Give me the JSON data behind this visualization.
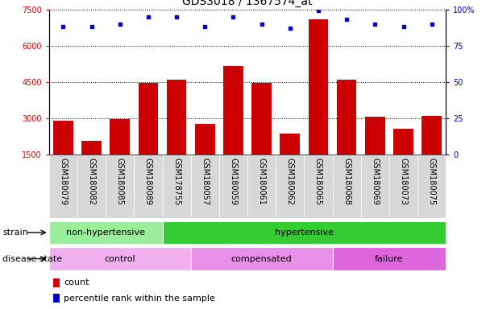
{
  "title": "GDS3018 / 1367574_at",
  "samples": [
    "GSM180079",
    "GSM180082",
    "GSM180085",
    "GSM180089",
    "GSM178755",
    "GSM180057",
    "GSM180059",
    "GSM180061",
    "GSM180062",
    "GSM180065",
    "GSM180068",
    "GSM180069",
    "GSM180073",
    "GSM180075"
  ],
  "counts": [
    2900,
    2050,
    2950,
    4450,
    4600,
    2750,
    5150,
    4450,
    2350,
    7100,
    4600,
    3050,
    2550,
    3100
  ],
  "percentile_ranks": [
    88,
    88,
    90,
    95,
    95,
    88,
    95,
    90,
    87,
    99,
    93,
    90,
    88,
    90
  ],
  "ylim_left": [
    1500,
    7500
  ],
  "ylim_right": [
    0,
    100
  ],
  "yticks_left": [
    1500,
    3000,
    4500,
    6000,
    7500
  ],
  "yticks_right": [
    0,
    25,
    50,
    75
  ],
  "ytick_top_label": "100%",
  "bar_color": "#cc0000",
  "dot_color": "#0000cc",
  "grid_color": "#000000",
  "strain_groups": [
    {
      "label": "non-hypertensive",
      "start": 0,
      "end": 4,
      "color": "#99ee99"
    },
    {
      "label": "hypertensive",
      "start": 4,
      "end": 14,
      "color": "#33cc33"
    }
  ],
  "disease_groups": [
    {
      "label": "control",
      "start": 0,
      "end": 5,
      "color": "#f0b0f0"
    },
    {
      "label": "compensated",
      "start": 5,
      "end": 10,
      "color": "#e890e8"
    },
    {
      "label": "failure",
      "start": 10,
      "end": 14,
      "color": "#dd66dd"
    }
  ],
  "legend_count_label": "count",
  "legend_pct_label": "percentile rank within the sample",
  "strain_label": "strain",
  "disease_label": "disease state",
  "title_fontsize": 10,
  "tick_fontsize": 7,
  "label_fontsize": 8,
  "annot_fontsize": 8,
  "n_samples": 14
}
